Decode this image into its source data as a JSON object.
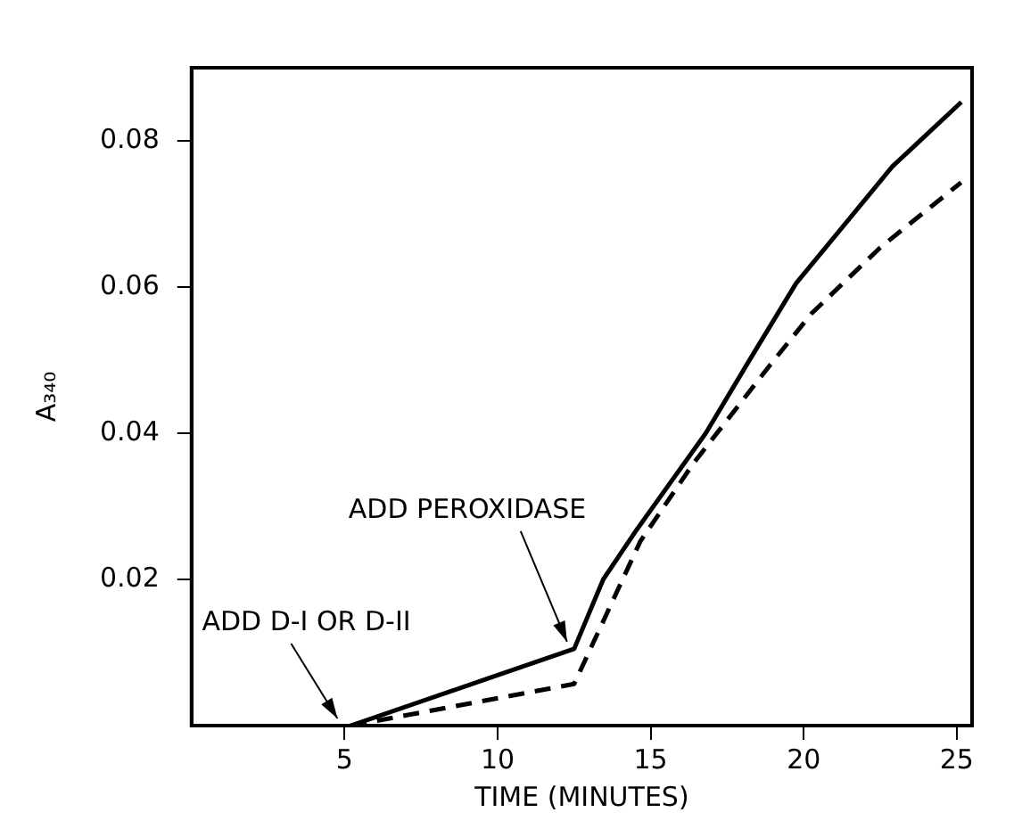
{
  "chart_data": {
    "type": "line",
    "xlabel": "TIME (MINUTES)",
    "ylabel": "A₃₄₀",
    "xlim": [
      0,
      25.5
    ],
    "ylim": [
      0,
      0.09
    ],
    "xticks": [
      5,
      10,
      15,
      20,
      25
    ],
    "yticks": [
      0.02,
      0.04,
      0.06,
      0.08
    ],
    "grid": false,
    "legend": false,
    "marker": "none",
    "series": [
      {
        "color": "#000000",
        "line_style": "solid",
        "x": [
          5.2,
          12.5,
          13.45,
          14.56,
          16.8,
          18.2,
          19.75,
          22.9,
          25.15
        ],
        "values": [
          0,
          0.0105,
          0.02,
          0.0269,
          0.04,
          0.0498,
          0.0605,
          0.0765,
          0.0853
        ]
      },
      {
        "color": "#000000",
        "line_style": "dashed",
        "x": [
          5.2,
          12.5,
          14.66,
          16.4,
          18.84,
          20.26,
          22.5,
          25.14
        ],
        "values": [
          0,
          0.0057,
          0.0252,
          0.0359,
          0.049,
          0.0564,
          0.0654,
          0.0743
        ]
      }
    ],
    "annotations": [
      {
        "text": "ADD PEROXIDASE",
        "x": 12.5,
        "y": 0.0105
      },
      {
        "text": "ADD D-I OR D-II",
        "x": 5,
        "y": 0
      }
    ]
  }
}
